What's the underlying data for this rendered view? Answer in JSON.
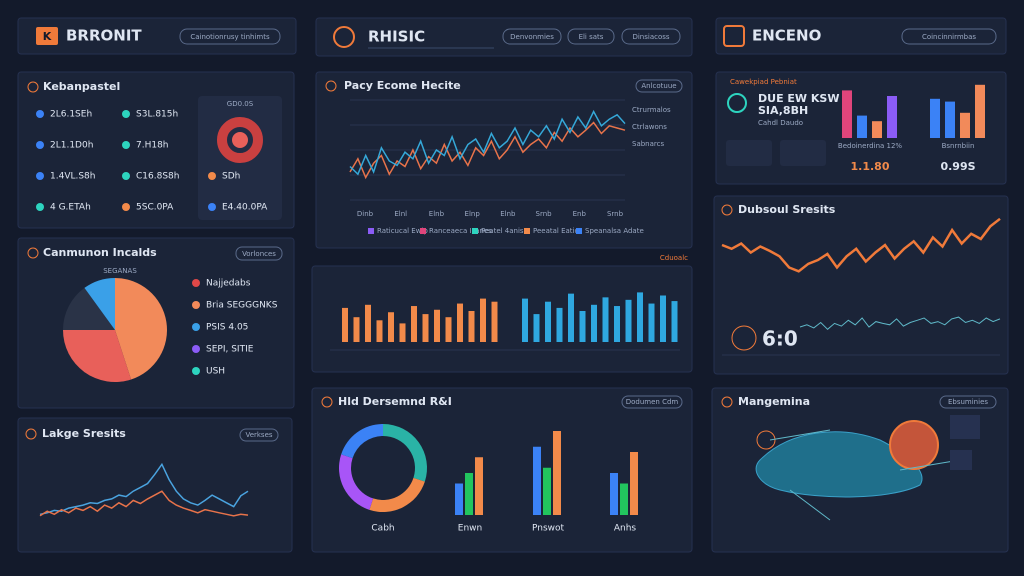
{
  "headers": [
    {
      "logo": "K",
      "title": "BRRONIT",
      "buttons": [
        "Cainotionrusy tinhimts"
      ]
    },
    {
      "title": "RHISIC",
      "buttons": [
        "Denvonmies",
        "Eli sats",
        "Dinsiacoss"
      ]
    },
    {
      "title": "ENCENO",
      "buttons": [
        "Coincinnirmbas"
      ]
    }
  ],
  "stats_panel": {
    "title": "Kebanpastel",
    "ring_label": "GD0.0S",
    "values": [
      "2L6.1SEh",
      "S3L.815h",
      "2L1.1D0h",
      "7.H18h",
      "1.4VL.S8h",
      "C16.8S8h",
      "SDh",
      "4 G.ETAh",
      "5SC.0PA",
      "E4.40.0PA"
    ]
  },
  "pie_panel": {
    "title": "Canmunon Incalds",
    "button": "Vorlonces",
    "pie_label": "SEGANAS",
    "values": [
      45,
      30,
      15,
      10
    ],
    "colors": [
      "#f28a5a",
      "#e8605a",
      "#2a3347",
      "#3aa0e8"
    ],
    "legend": [
      {
        "name": "Najjedabs",
        "color": "#e04848"
      },
      {
        "name": "Bria SEGGGNKS",
        "color": "#f28a5a"
      },
      {
        "name": "PSIS 4.05",
        "color": "#3aa0e8"
      },
      {
        "name": "SEPI, SITIE",
        "color": "#8b5cf6"
      },
      {
        "name": "USH",
        "color": "#2dd4bf"
      }
    ]
  },
  "area_panel": {
    "title": "Lakge Sresits",
    "button": "Verkses",
    "ylim": [
      0,
      100
    ],
    "series": [
      {
        "color": "#4aa3df",
        "values": [
          10,
          12,
          15,
          14,
          18,
          20,
          22,
          25,
          24,
          28,
          30,
          35,
          33,
          40,
          45,
          50,
          62,
          75,
          55,
          40,
          30,
          25,
          22,
          28,
          35,
          30,
          25,
          20,
          34,
          40
        ]
      },
      {
        "color": "#e8734a",
        "values": [
          8,
          14,
          10,
          16,
          12,
          18,
          15,
          20,
          14,
          22,
          18,
          25,
          20,
          28,
          24,
          30,
          35,
          40,
          28,
          22,
          18,
          15,
          12,
          16,
          14,
          12,
          10,
          8,
          10,
          9
        ]
      }
    ]
  },
  "market_panel": {
    "title": "Pacy Ecome Hecite",
    "button": "Anlcotuue",
    "ylim": [
      0,
      100
    ],
    "series": [
      {
        "color": "#e8734a",
        "values": [
          30,
          42,
          25,
          38,
          45,
          28,
          40,
          35,
          50,
          33,
          44,
          38,
          55,
          40,
          48,
          36,
          52,
          45,
          58,
          42,
          50,
          62,
          48,
          55,
          60,
          52,
          66,
          58,
          70,
          62,
          68,
          75,
          65,
          72,
          70,
          68
        ]
      },
      {
        "color": "#35a8d8",
        "values": [
          35,
          28,
          45,
          30,
          52,
          40,
          36,
          48,
          42,
          58,
          38,
          50,
          45,
          62,
          42,
          55,
          60,
          48,
          65,
          52,
          58,
          70,
          55,
          68,
          62,
          72,
          60,
          78,
          66,
          80,
          70,
          85,
          72,
          78,
          82,
          74
        ]
      }
    ],
    "xlabels": [
      "Dinb",
      "Elnl",
      "Elnb",
      "Elnp",
      "Elnb",
      "Srnb",
      "Enb",
      "Srnb"
    ],
    "legend": [
      "Raticucal Ewip",
      "Ranceaeca Isanes",
      "Peatel 4anis",
      "Peeatal Eatio",
      "Speanalsa Adate"
    ],
    "side_labels": [
      "Ctrurmalos",
      "Ctrlawons",
      "Sabnarcs"
    ]
  },
  "bars_panel": {
    "label": "Cduoalc",
    "ylim": [
      0,
      100
    ],
    "series": [
      {
        "color": "#f28a4a",
        "values": [
          55,
          40,
          60,
          35,
          48,
          30,
          58,
          45,
          52,
          40,
          62,
          50,
          70,
          65
        ]
      },
      {
        "color": "#2fa8e0",
        "values": [
          70,
          45,
          65,
          55,
          78,
          50,
          60,
          72,
          58,
          68,
          80,
          62,
          75,
          66
        ]
      }
    ]
  },
  "group_panel": {
    "title": "Hld Dersemnd R&I",
    "button": "Dodumen Cdm",
    "donut": {
      "values": [
        30,
        25,
        25,
        20
      ],
      "colors": [
        "#2ab3a6",
        "#f28a4a",
        "#a855f7",
        "#3b82f6"
      ]
    },
    "categories": [
      "Cabh",
      "Enwn",
      "Pnswot",
      "Anhs"
    ],
    "ylim": [
      0,
      100
    ],
    "series": [
      {
        "color": "#3b82f6",
        "values": [
          30,
          65,
          40
        ]
      },
      {
        "color": "#22c55e",
        "values": [
          40,
          45,
          30
        ]
      },
      {
        "color": "#f28a4a",
        "values": [
          55,
          80,
          60
        ]
      }
    ]
  },
  "kpi_panel": {
    "header": "Cawekpiad Pebniat",
    "lines": [
      "DUE EW KSW",
      "SIA,8BH",
      "Cahdl Daudo"
    ],
    "ylim": [
      0,
      100
    ],
    "charts": [
      {
        "label": "Bedoinerdina 12%",
        "value": "1.1.80",
        "values": [
          85,
          40,
          30,
          75
        ],
        "colors": [
          "#e0457b",
          "#3b82f6",
          "#f28a5a",
          "#8b5cf6"
        ]
      },
      {
        "label": "Bsnrnbiin",
        "value": "0.99S",
        "values": [
          70,
          65,
          45,
          95
        ],
        "colors": [
          "#3b82f6",
          "#3b82f6",
          "#f28a5a",
          "#f28a5a"
        ]
      }
    ]
  },
  "trend_panel": {
    "title": "Dubsoul Sresits",
    "big_value": "6:0",
    "ylim": [
      0,
      100
    ],
    "series": [
      {
        "color": "#f07a3a",
        "values": [
          60,
          55,
          62,
          50,
          58,
          52,
          45,
          30,
          25,
          35,
          40,
          48,
          30,
          45,
          55,
          38,
          50,
          60,
          42,
          55,
          65,
          50,
          70,
          58,
          80,
          62,
          75,
          68,
          85,
          95
        ]
      },
      {
        "color": "#5fb8c8",
        "values": [
          40,
          45,
          38,
          50,
          35,
          48,
          42,
          55,
          45,
          60,
          40,
          52,
          48,
          45,
          58,
          42,
          50,
          55,
          60,
          48,
          52,
          45,
          58,
          62,
          50,
          55,
          48,
          60,
          52,
          58
        ]
      }
    ]
  },
  "map_panel": {
    "title": "Mangemina",
    "button": "Ebsuminies"
  }
}
